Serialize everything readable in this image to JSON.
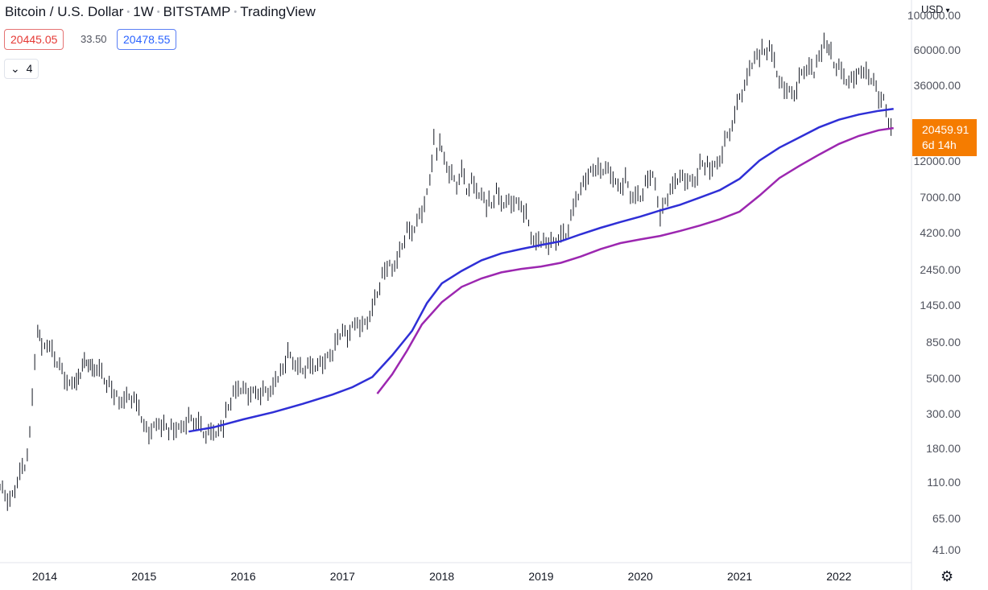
{
  "header": {
    "symbol": "Bitcoin / U.S. Dollar",
    "interval": "1W",
    "exchange": "BITSTAMP",
    "platform": "TradingView",
    "bid": "20445.05",
    "spread": "33.50",
    "ask": "20478.55",
    "indicators_count": "4",
    "currency": "USD"
  },
  "price_label": {
    "price": "20459.91",
    "countdown": "6d 14h"
  },
  "colors": {
    "bar": "#131722",
    "ma_blue": "#2f2fd6",
    "ma_purple": "#9c27b0",
    "price_label": "#f57c00"
  },
  "chart_data": {
    "type": "line",
    "scale": "log",
    "y_ticks": [
      "100000.00",
      "60000.00",
      "36000.00",
      "12000.00",
      "7000.00",
      "4200.00",
      "2450.00",
      "1450.00",
      "850.00",
      "500.00",
      "300.00",
      "180.00",
      "110.00",
      "65.00",
      "41.00"
    ],
    "y_tick_values": [
      100000,
      60000,
      36000,
      12000,
      7000,
      4200,
      2450,
      1450,
      850,
      500,
      300,
      180,
      110,
      65,
      41
    ],
    "x_ticks": [
      "2014",
      "2015",
      "2016",
      "2017",
      "2018",
      "2019",
      "2020",
      "2021",
      "2022"
    ],
    "x_tick_values": [
      2014,
      2015,
      2016,
      2017,
      2018,
      2019,
      2020,
      2021,
      2022
    ],
    "xlim": [
      2013.55,
      2022.65
    ],
    "ylim": [
      34,
      125000
    ],
    "series": [
      {
        "type": "ohlc",
        "points": [
          [
            2013.55,
            110
          ],
          [
            2013.6,
            90
          ],
          [
            2013.65,
            80
          ],
          [
            2013.7,
            100
          ],
          [
            2013.75,
            125
          ],
          [
            2013.8,
            140
          ],
          [
            2013.85,
            220
          ],
          [
            2013.9,
            650
          ],
          [
            2013.93,
            1000
          ],
          [
            2013.97,
            850
          ],
          [
            2014.0,
            800
          ],
          [
            2014.05,
            850
          ],
          [
            2014.1,
            650
          ],
          [
            2014.15,
            600
          ],
          [
            2014.2,
            500
          ],
          [
            2014.25,
            450
          ],
          [
            2014.3,
            480
          ],
          [
            2014.4,
            620
          ],
          [
            2014.5,
            600
          ],
          [
            2014.55,
            580
          ],
          [
            2014.6,
            510
          ],
          [
            2014.65,
            470
          ],
          [
            2014.7,
            400
          ],
          [
            2014.75,
            360
          ],
          [
            2014.8,
            350
          ],
          [
            2014.85,
            390
          ],
          [
            2014.9,
            360
          ],
          [
            2014.95,
            330
          ],
          [
            2015.0,
            250
          ],
          [
            2015.05,
            230
          ],
          [
            2015.1,
            250
          ],
          [
            2015.15,
            270
          ],
          [
            2015.2,
            255
          ],
          [
            2015.25,
            245
          ],
          [
            2015.3,
            235
          ],
          [
            2015.35,
            235
          ],
          [
            2015.4,
            250
          ],
          [
            2015.45,
            275
          ],
          [
            2015.5,
            270
          ],
          [
            2015.55,
            265
          ],
          [
            2015.6,
            230
          ],
          [
            2015.65,
            230
          ],
          [
            2015.7,
            235
          ],
          [
            2015.75,
            240
          ],
          [
            2015.8,
            260
          ],
          [
            2015.85,
            330
          ],
          [
            2015.9,
            390
          ],
          [
            2015.95,
            430
          ],
          [
            2016.0,
            430
          ],
          [
            2016.05,
            400
          ],
          [
            2016.1,
            410
          ],
          [
            2016.15,
            410
          ],
          [
            2016.2,
            415
          ],
          [
            2016.25,
            430
          ],
          [
            2016.3,
            450
          ],
          [
            2016.35,
            530
          ],
          [
            2016.4,
            570
          ],
          [
            2016.45,
            700
          ],
          [
            2016.5,
            650
          ],
          [
            2016.55,
            580
          ],
          [
            2016.6,
            575
          ],
          [
            2016.65,
            600
          ],
          [
            2016.7,
            610
          ],
          [
            2016.75,
            615
          ],
          [
            2016.8,
            650
          ],
          [
            2016.85,
            700
          ],
          [
            2016.9,
            740
          ],
          [
            2016.95,
            900
          ],
          [
            2017.0,
            980
          ],
          [
            2017.05,
            920
          ],
          [
            2017.1,
            1050
          ],
          [
            2017.15,
            1150
          ],
          [
            2017.2,
            1050
          ],
          [
            2017.25,
            1200
          ],
          [
            2017.3,
            1400
          ],
          [
            2017.35,
            1800
          ],
          [
            2017.4,
            2300
          ],
          [
            2017.45,
            2600
          ],
          [
            2017.5,
            2500
          ],
          [
            2017.55,
            2700
          ],
          [
            2017.6,
            3500
          ],
          [
            2017.65,
            4300
          ],
          [
            2017.7,
            4200
          ],
          [
            2017.75,
            5000
          ],
          [
            2017.8,
            5800
          ],
          [
            2017.85,
            7500
          ],
          [
            2017.88,
            9500
          ],
          [
            2017.92,
            16500
          ],
          [
            2017.95,
            14500
          ],
          [
            2017.98,
            16000
          ],
          [
            2018.0,
            13500
          ],
          [
            2018.05,
            11000
          ],
          [
            2018.1,
            9500
          ],
          [
            2018.15,
            8500
          ],
          [
            2018.2,
            10500
          ],
          [
            2018.25,
            8000
          ],
          [
            2018.3,
            9000
          ],
          [
            2018.35,
            8000
          ],
          [
            2018.4,
            7500
          ],
          [
            2018.45,
            6500
          ],
          [
            2018.5,
            6300
          ],
          [
            2018.55,
            7500
          ],
          [
            2018.6,
            6400
          ],
          [
            2018.65,
            6500
          ],
          [
            2018.7,
            6600
          ],
          [
            2018.75,
            6500
          ],
          [
            2018.8,
            6350
          ],
          [
            2018.85,
            5500
          ],
          [
            2018.9,
            4200
          ],
          [
            2018.95,
            3700
          ],
          [
            2019.0,
            3800
          ],
          [
            2019.05,
            3600
          ],
          [
            2019.1,
            3500
          ],
          [
            2019.15,
            3700
          ],
          [
            2019.2,
            4000
          ],
          [
            2019.25,
            4100
          ],
          [
            2019.3,
            5200
          ],
          [
            2019.35,
            7000
          ],
          [
            2019.4,
            8000
          ],
          [
            2019.45,
            9500
          ],
          [
            2019.5,
            10500
          ],
          [
            2019.55,
            11000
          ],
          [
            2019.6,
            10200
          ],
          [
            2019.65,
            10500
          ],
          [
            2019.7,
            10000
          ],
          [
            2019.75,
            8500
          ],
          [
            2019.8,
            8200
          ],
          [
            2019.85,
            9200
          ],
          [
            2019.9,
            7500
          ],
          [
            2019.95,
            7200
          ],
          [
            2020.0,
            7300
          ],
          [
            2020.05,
            8800
          ],
          [
            2020.1,
            9800
          ],
          [
            2020.15,
            8800
          ],
          [
            2020.2,
            5000
          ],
          [
            2020.25,
            6800
          ],
          [
            2020.3,
            7500
          ],
          [
            2020.35,
            9000
          ],
          [
            2020.4,
            9500
          ],
          [
            2020.45,
            9300
          ],
          [
            2020.5,
            9100
          ],
          [
            2020.55,
            9200
          ],
          [
            2020.6,
            11500
          ],
          [
            2020.65,
            11700
          ],
          [
            2020.7,
            10500
          ],
          [
            2020.75,
            10800
          ],
          [
            2020.8,
            12000
          ],
          [
            2020.85,
            15500
          ],
          [
            2020.9,
            18500
          ],
          [
            2020.95,
            23000
          ],
          [
            2021.0,
            32000
          ],
          [
            2021.05,
            35000
          ],
          [
            2021.1,
            48000
          ],
          [
            2021.15,
            55000
          ],
          [
            2021.2,
            58000
          ],
          [
            2021.25,
            59000
          ],
          [
            2021.3,
            60000
          ],
          [
            2021.35,
            52000
          ],
          [
            2021.4,
            37000
          ],
          [
            2021.45,
            35000
          ],
          [
            2021.5,
            33000
          ],
          [
            2021.55,
            32000
          ],
          [
            2021.6,
            40000
          ],
          [
            2021.65,
            47000
          ],
          [
            2021.7,
            48000
          ],
          [
            2021.75,
            45000
          ],
          [
            2021.8,
            55000
          ],
          [
            2021.85,
            64000
          ],
          [
            2021.88,
            66000
          ],
          [
            2021.92,
            58000
          ],
          [
            2021.95,
            50000
          ],
          [
            2022.0,
            47000
          ],
          [
            2022.05,
            42000
          ],
          [
            2022.1,
            38000
          ],
          [
            2022.15,
            42000
          ],
          [
            2022.2,
            44000
          ],
          [
            2022.25,
            46000
          ],
          [
            2022.3,
            40000
          ],
          [
            2022.35,
            38000
          ],
          [
            2022.4,
            30000
          ],
          [
            2022.45,
            29000
          ],
          [
            2022.5,
            21000
          ],
          [
            2022.55,
            20459.91
          ]
        ]
      },
      {
        "name": "",
        "color": "#2f2fd6",
        "points": [
          [
            2015.45,
            230
          ],
          [
            2015.7,
            245
          ],
          [
            2016.0,
            275
          ],
          [
            2016.3,
            305
          ],
          [
            2016.6,
            345
          ],
          [
            2016.9,
            395
          ],
          [
            2017.1,
            440
          ],
          [
            2017.3,
            510
          ],
          [
            2017.5,
            700
          ],
          [
            2017.7,
            1000
          ],
          [
            2017.85,
            1500
          ],
          [
            2018.0,
            2000
          ],
          [
            2018.2,
            2400
          ],
          [
            2018.4,
            2800
          ],
          [
            2018.6,
            3100
          ],
          [
            2018.8,
            3300
          ],
          [
            2019.0,
            3500
          ],
          [
            2019.2,
            3700
          ],
          [
            2019.4,
            4100
          ],
          [
            2019.6,
            4500
          ],
          [
            2019.8,
            4900
          ],
          [
            2020.0,
            5300
          ],
          [
            2020.2,
            5800
          ],
          [
            2020.4,
            6300
          ],
          [
            2020.6,
            7000
          ],
          [
            2020.8,
            7800
          ],
          [
            2021.0,
            9200
          ],
          [
            2021.2,
            12000
          ],
          [
            2021.4,
            14500
          ],
          [
            2021.6,
            16800
          ],
          [
            2021.8,
            19500
          ],
          [
            2022.0,
            21800
          ],
          [
            2022.2,
            23500
          ],
          [
            2022.4,
            24800
          ],
          [
            2022.55,
            25500
          ]
        ]
      },
      {
        "name": "",
        "color": "#9c27b0",
        "points": [
          [
            2017.35,
            400
          ],
          [
            2017.5,
            530
          ],
          [
            2017.65,
            750
          ],
          [
            2017.8,
            1100
          ],
          [
            2018.0,
            1520
          ],
          [
            2018.2,
            1900
          ],
          [
            2018.4,
            2150
          ],
          [
            2018.6,
            2350
          ],
          [
            2018.8,
            2470
          ],
          [
            2019.0,
            2560
          ],
          [
            2019.2,
            2700
          ],
          [
            2019.4,
            2960
          ],
          [
            2019.6,
            3300
          ],
          [
            2019.8,
            3600
          ],
          [
            2020.0,
            3800
          ],
          [
            2020.2,
            4000
          ],
          [
            2020.4,
            4300
          ],
          [
            2020.6,
            4650
          ],
          [
            2020.8,
            5100
          ],
          [
            2021.0,
            5700
          ],
          [
            2021.2,
            7200
          ],
          [
            2021.4,
            9300
          ],
          [
            2021.6,
            11100
          ],
          [
            2021.8,
            13100
          ],
          [
            2022.0,
            15300
          ],
          [
            2022.2,
            17200
          ],
          [
            2022.4,
            18700
          ],
          [
            2022.55,
            19300
          ]
        ]
      }
    ]
  }
}
